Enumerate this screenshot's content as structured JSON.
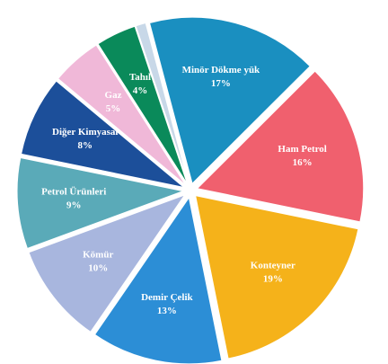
{
  "chart_data": {
    "type": "pie",
    "categories": [
      "Minör Dökme yük",
      "Ham Petrol",
      "Konteyner",
      "Demir Çelik",
      "Kömür",
      "Petrol Ürünleri",
      "Diğer Kimyasal",
      "Gaz",
      "Tahıl",
      null
    ],
    "values": [
      17,
      16,
      19,
      13,
      10,
      9,
      8,
      5,
      4,
      1
    ],
    "value_labels": [
      "17%",
      "16%",
      "19%",
      "13%",
      "10%",
      "9%",
      "8%",
      "5%",
      "4%",
      null
    ],
    "colors": [
      "#1a8fc0",
      "#f0606e",
      "#f5b21a",
      "#2c8ed6",
      "#a8b6de",
      "#5aaab8",
      "#1c4f9a",
      "#f0b8d8",
      "#0a8a5a",
      "#c8d8e8"
    ]
  }
}
